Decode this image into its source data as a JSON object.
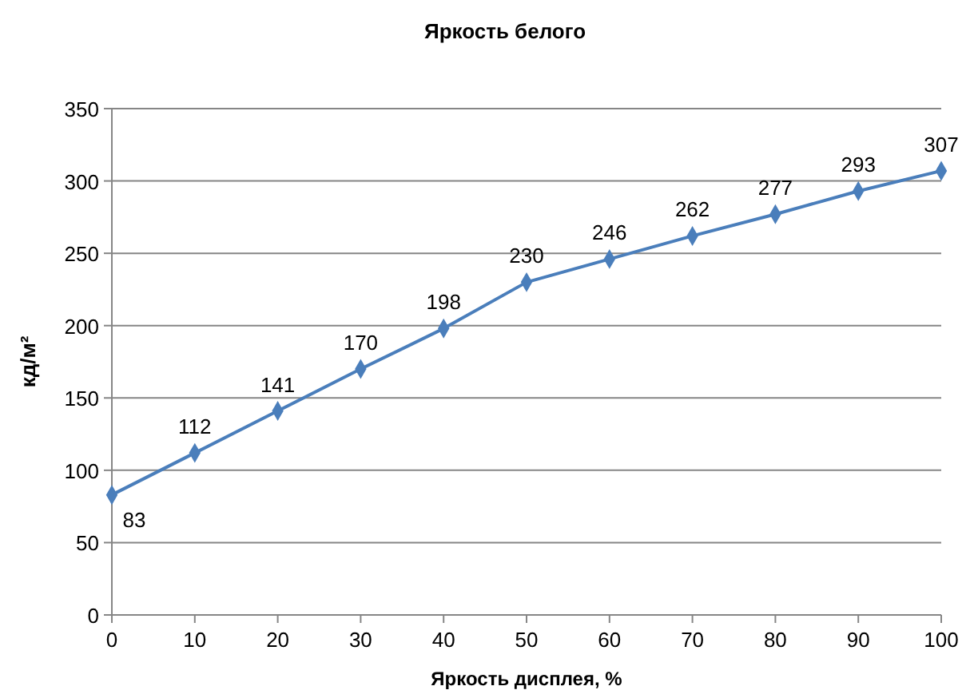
{
  "chart_data": {
    "type": "line",
    "title": "Яркость белого",
    "xlabel": "Яркость дисплея, %",
    "ylabel": "кд/м²",
    "x": [
      0,
      10,
      20,
      30,
      40,
      50,
      60,
      70,
      80,
      90,
      100
    ],
    "series": [
      {
        "color": "#4a7ebb",
        "values": [
          83,
          112,
          141,
          170,
          198,
          230,
          246,
          262,
          277,
          293,
          307
        ]
      }
    ],
    "xlim": [
      0,
      100
    ],
    "xticks": [
      0,
      10,
      20,
      30,
      40,
      50,
      60,
      70,
      80,
      90,
      100
    ],
    "ylim": [
      0,
      350
    ],
    "yticks": [
      0,
      50,
      100,
      150,
      200,
      250,
      300,
      350
    ],
    "grid": "y",
    "marker": "diamond",
    "line_style": "solid",
    "data_labels": true
  }
}
